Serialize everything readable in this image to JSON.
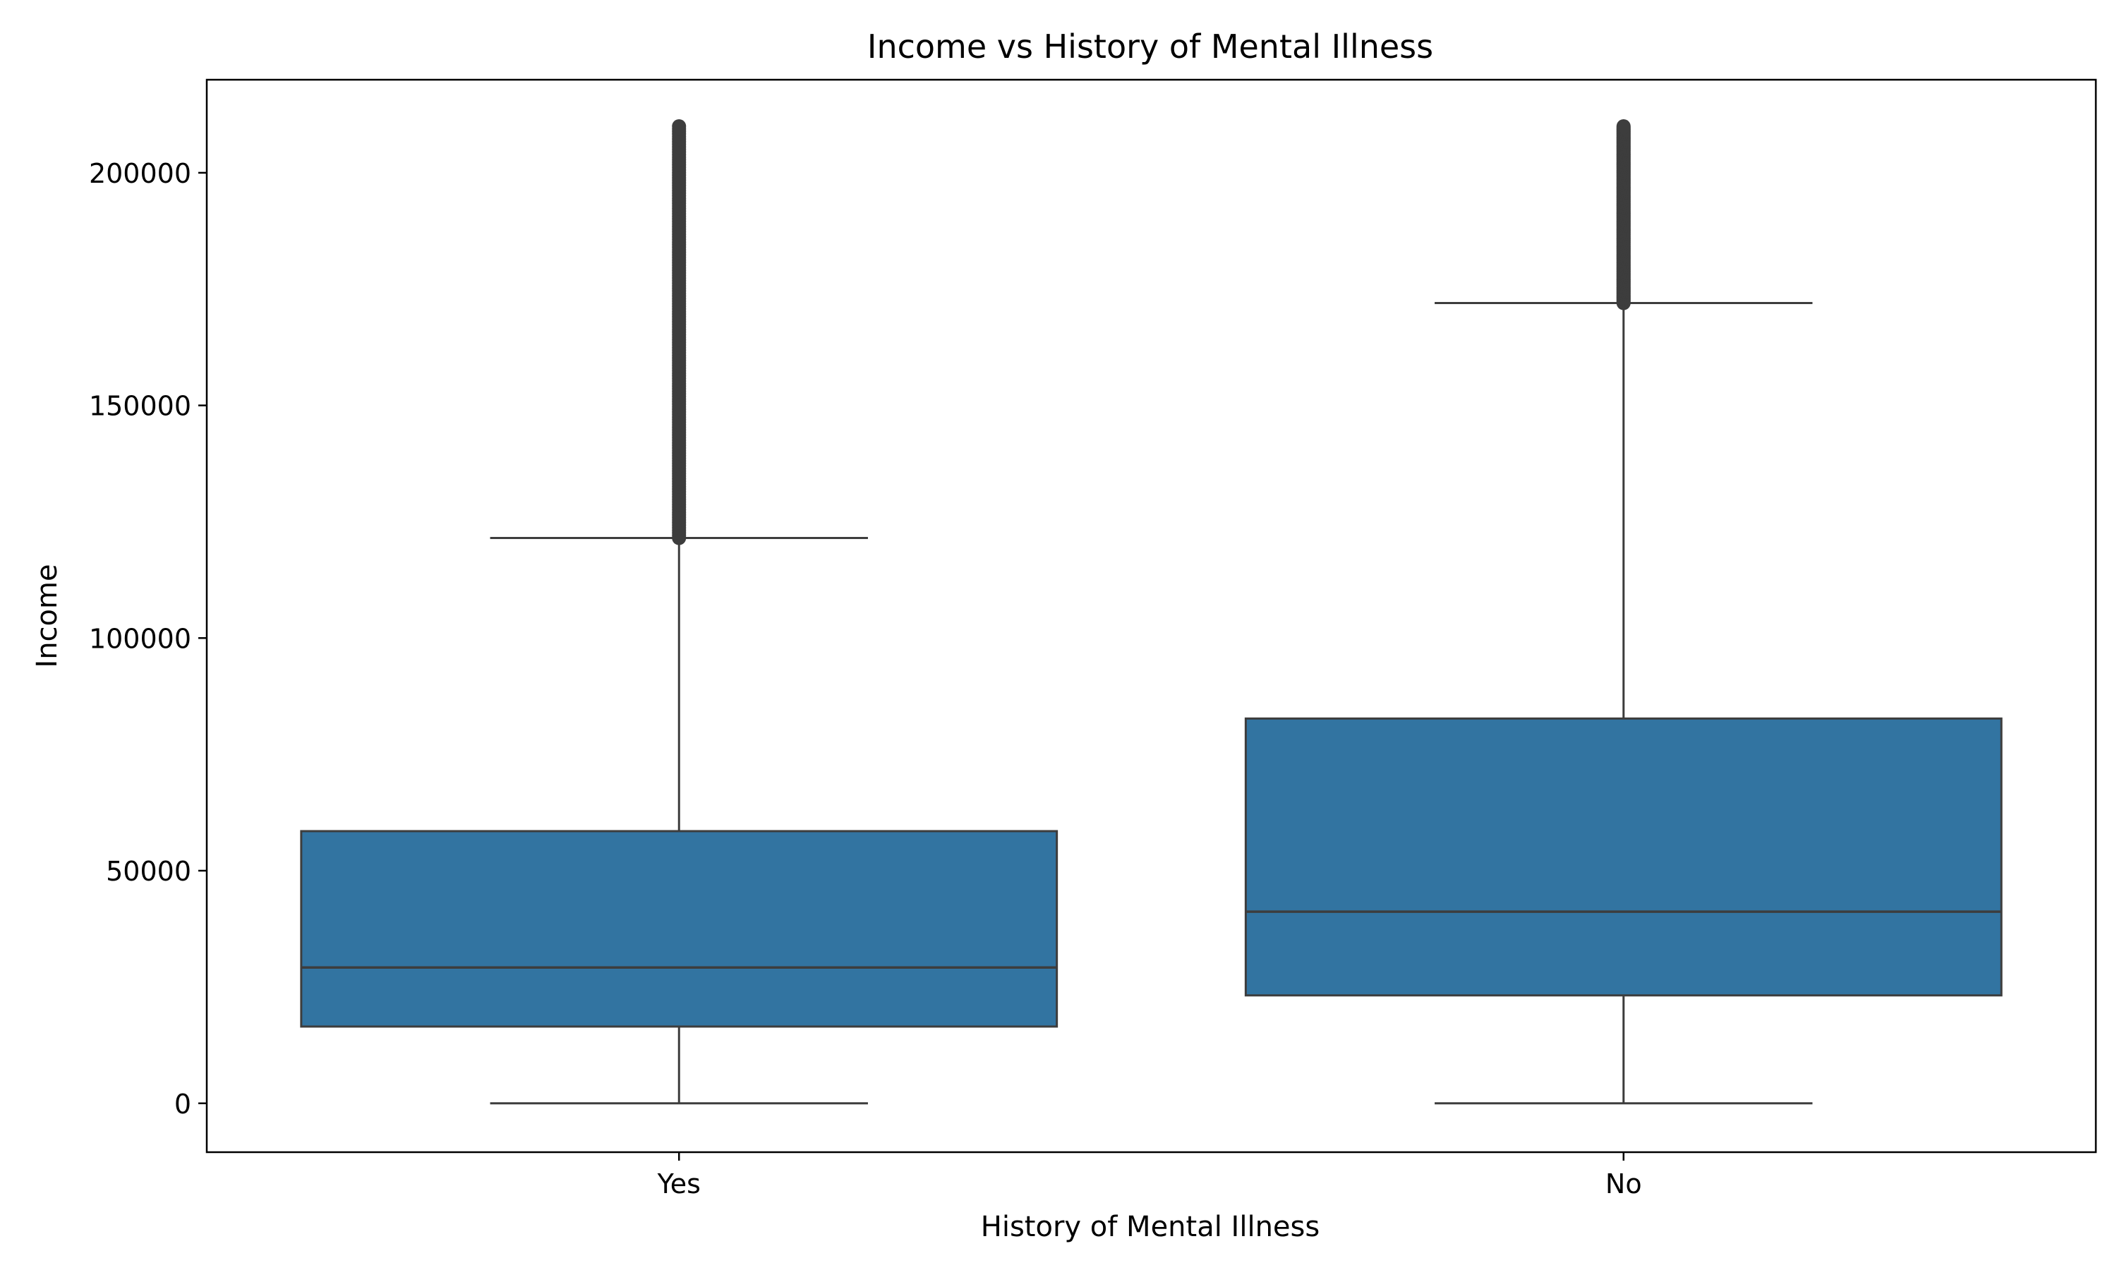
{
  "chart_data": {
    "type": "box",
    "title": "Income vs History of Mental Illness",
    "xlabel": "History of Mental Illness",
    "ylabel": "Income",
    "ylim": [
      -10500,
      220000
    ],
    "yticks": [
      0,
      50000,
      100000,
      150000,
      200000
    ],
    "ytick_labels": [
      "0",
      "50000",
      "100000",
      "150000",
      "200000"
    ],
    "categories": [
      "Yes",
      "No"
    ],
    "series": [
      {
        "category": "Yes",
        "whisker_low": 0,
        "q1": 16500,
        "median": 29200,
        "q3": 58500,
        "whisker_high": 121500,
        "outlier_range": [
          121500,
          210000
        ]
      },
      {
        "category": "No",
        "whisker_low": 0,
        "q1": 23200,
        "median": 41200,
        "q3": 82700,
        "whisker_high": 172000,
        "outlier_range": [
          172000,
          210000
        ]
      }
    ],
    "box_color": "#3274a1",
    "line_color": "#3d3d3d",
    "grid": false,
    "legend": "none"
  }
}
